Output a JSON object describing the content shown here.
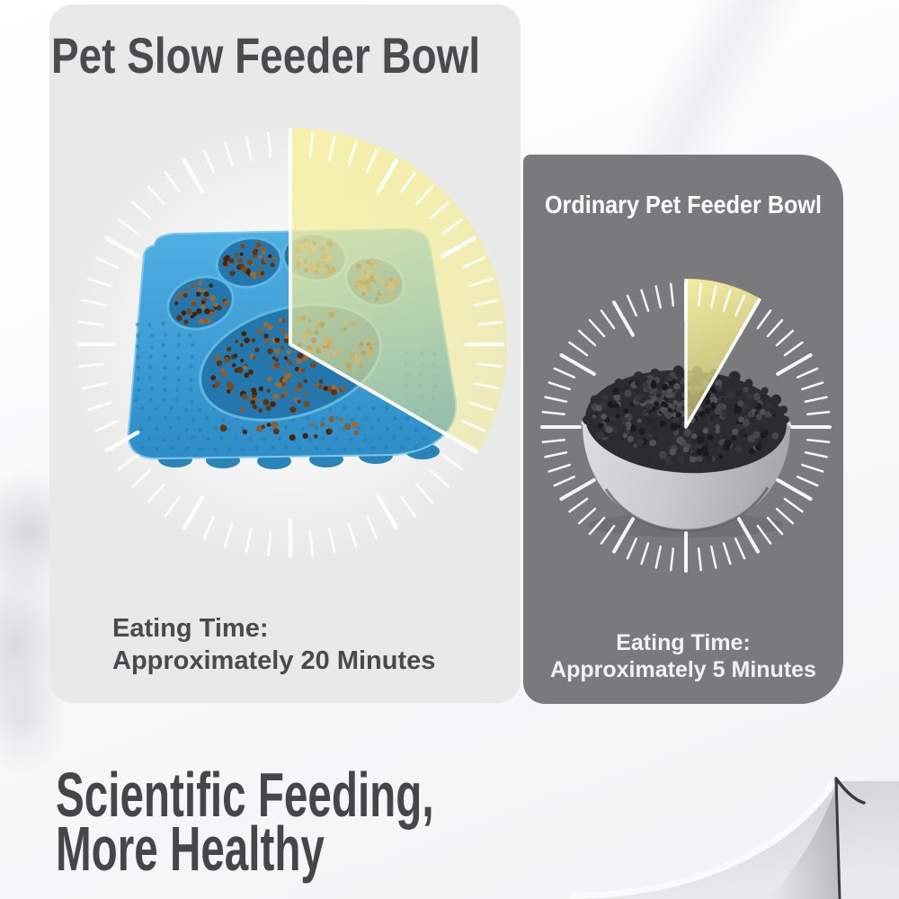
{
  "page": {
    "heading_line1": "Scientific Feeding,",
    "heading_line2": "More Healthy"
  },
  "panels": {
    "slow_feeder": {
      "title": "Pet Slow Feeder Bowl",
      "eating_time_label": "Eating Time:",
      "eating_time_value": "Approximately 20 Minutes",
      "clock": {
        "minutes": 20,
        "dial_minutes_total": 60
      },
      "product_image": "paw-shaped-slow-feeder-lick-mat-photo"
    },
    "ordinary": {
      "title": "Ordinary Pet Feeder Bowl",
      "eating_time_label": "Eating Time:",
      "eating_time_value": "Approximately 5 Minutes",
      "clock": {
        "minutes": 5,
        "dial_minutes_total": 60
      },
      "product_image": "round-pet-bowl-with-kibble-photo"
    }
  },
  "colors": {
    "wedge_yellow": "#f5ee9b",
    "tick_white": "#ffffff",
    "left_panel_bg": "#e9e9ea",
    "right_panel_bg": "#7a7a7c",
    "heading_text": "#464649",
    "title_text": "#4b4b4d",
    "feeder_blue": "#42a4dc",
    "kibble_brown": "#6b3c16",
    "kibble_dark": "#2c2c30",
    "bowl_gray": "#c7c7c9"
  }
}
